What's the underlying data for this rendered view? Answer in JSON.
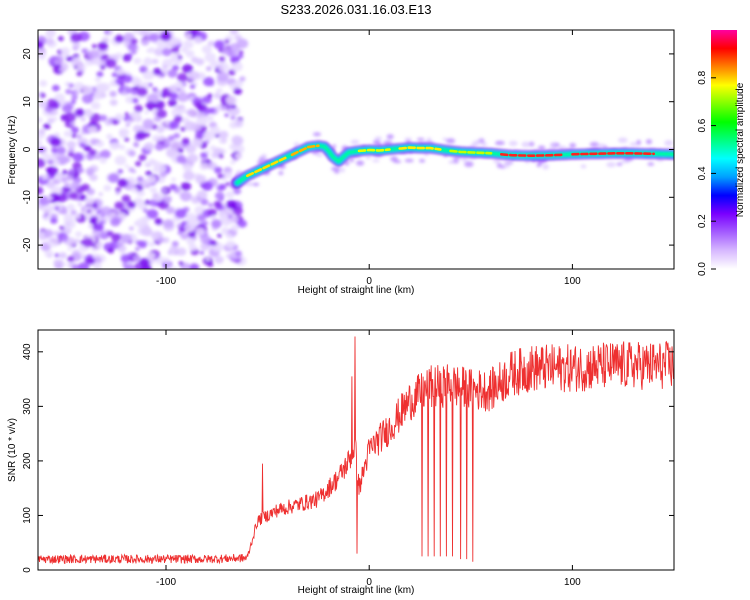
{
  "title": "S233.2026.031.16.03.E13",
  "chart_data": [
    {
      "type": "heatmap",
      "title": "S233.2026.031.16.03.E13",
      "xlabel": "Height of straight line (km)",
      "ylabel": "Frequency (Hz)",
      "xlim": [
        -163,
        150
      ],
      "ylim": [
        -25,
        25
      ],
      "xticks": [
        -100,
        0,
        100
      ],
      "yticks": [
        -20,
        -10,
        0,
        10,
        20
      ],
      "noise_region_x": [
        -163,
        -65
      ],
      "ridge": {
        "x": [
          -65,
          -60,
          -55,
          -50,
          -45,
          -40,
          -35,
          -30,
          -25,
          -22,
          -20,
          -18,
          -15,
          -12,
          -10,
          -5,
          0,
          5,
          10,
          15,
          20,
          25,
          30,
          35,
          40,
          45,
          50,
          60,
          70,
          80,
          90,
          100,
          110,
          120,
          130,
          140,
          150
        ],
        "y": [
          -7,
          -5.5,
          -4.5,
          -3.5,
          -2.5,
          -1.5,
          -0.5,
          0.5,
          0.8,
          0.6,
          -0.3,
          -1.5,
          -2.5,
          -1.3,
          -0.6,
          -0.3,
          -0.1,
          -0.2,
          0,
          0.2,
          0.4,
          0.3,
          0.3,
          0,
          -0.3,
          -0.5,
          -0.6,
          -0.8,
          -1.2,
          -1.3,
          -1.2,
          -1.0,
          -0.9,
          -0.8,
          -0.8,
          -0.9,
          -1.0
        ]
      },
      "colorbar": {
        "label": "Normalized spectral amplitude",
        "range": [
          0,
          1
        ],
        "ticks": [
          "0.0",
          "0.2",
          "0.4",
          "0.6",
          "0.8"
        ],
        "tick_values": [
          0,
          0.2,
          0.4,
          0.6,
          0.8
        ],
        "colors": [
          "#ffffff",
          "#d7b8ff",
          "#a45cff",
          "#7a00ff",
          "#0000ff",
          "#00a0ff",
          "#00ffff",
          "#00ff80",
          "#00ff00",
          "#80ff00",
          "#ffff00",
          "#ff8000",
          "#ff0000",
          "#ff00a0"
        ]
      }
    },
    {
      "type": "line",
      "xlabel": "Height of straight line (km)",
      "ylabel": "SNR (10 * v/v)",
      "xlim": [
        -163,
        150
      ],
      "ylim": [
        0,
        440
      ],
      "xticks": [
        -100,
        0,
        100
      ],
      "yticks": [
        0,
        100,
        200,
        300,
        400
      ],
      "color": "#ee3030",
      "trend": {
        "x": [
          -163,
          -120,
          -80,
          -60,
          -55,
          -45,
          -35,
          -25,
          -20,
          -15,
          -10,
          -7,
          -5,
          0,
          10,
          20,
          30,
          40,
          50,
          60,
          70,
          80,
          100,
          120,
          150
        ],
        "y": [
          20,
          20,
          20,
          22,
          90,
          110,
          120,
          130,
          150,
          170,
          200,
          230,
          150,
          220,
          260,
          310,
          335,
          340,
          330,
          330,
          360,
          370,
          370,
          375,
          375
        ]
      },
      "spikes": [
        {
          "x": -52.5,
          "y": 195
        },
        {
          "x": -7,
          "y": 428
        },
        {
          "x": -8.5,
          "y": 355
        }
      ],
      "dips": [
        {
          "x": -6,
          "y": 30
        },
        {
          "x": 26,
          "y": 25
        },
        {
          "x": 29,
          "y": 25
        },
        {
          "x": 32,
          "y": 25
        },
        {
          "x": 35,
          "y": 25
        },
        {
          "x": 38,
          "y": 25
        },
        {
          "x": 41,
          "y": 25
        },
        {
          "x": 45,
          "y": 20
        },
        {
          "x": 48,
          "y": 20
        },
        {
          "x": 51,
          "y": 15
        }
      ]
    }
  ]
}
